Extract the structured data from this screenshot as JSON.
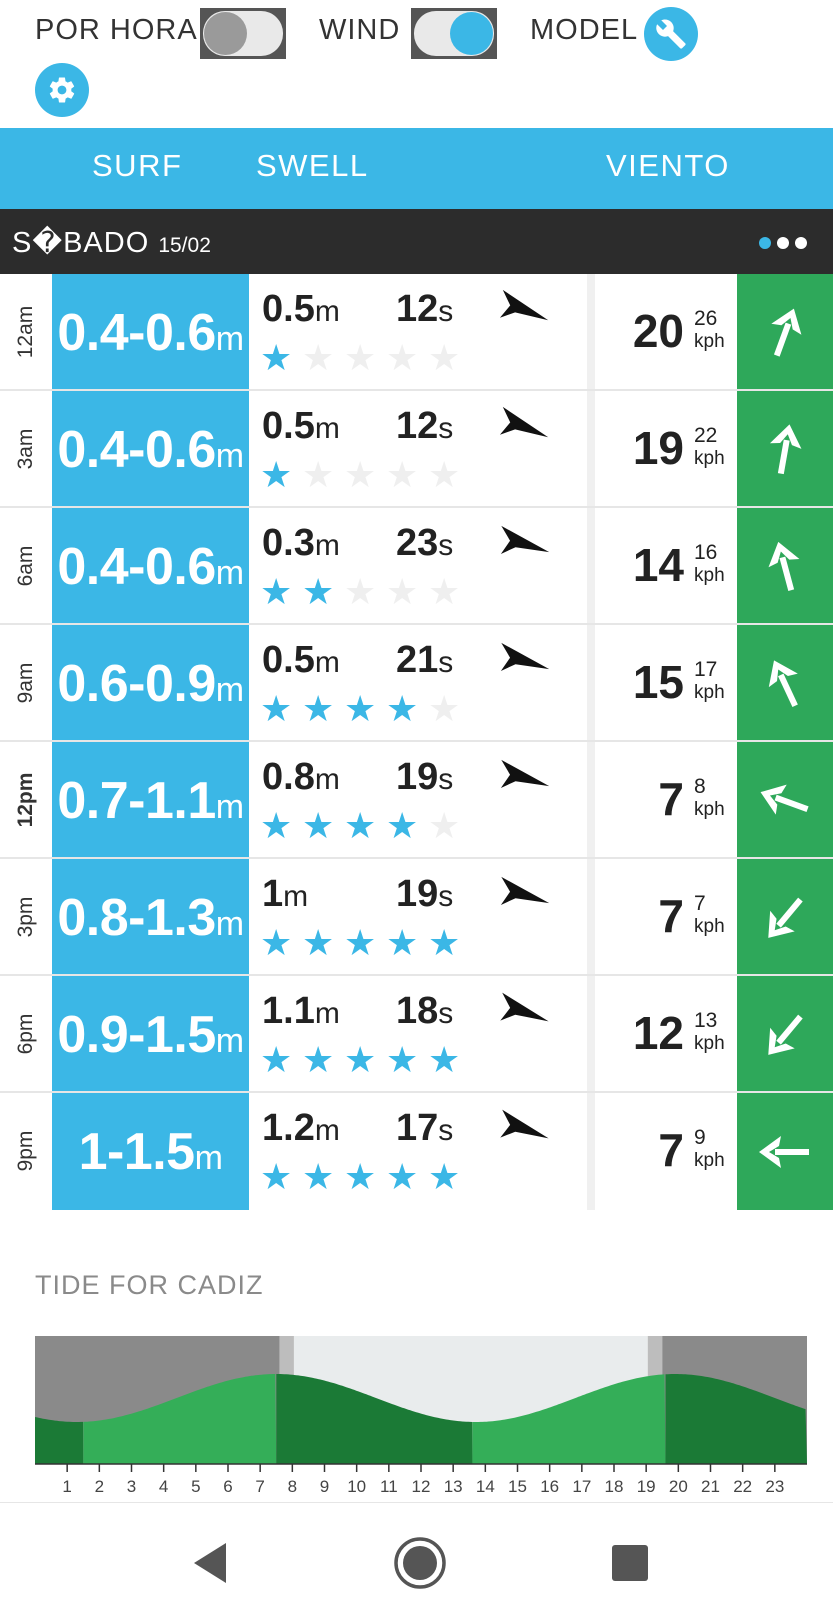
{
  "toggles": [
    {
      "label": "POR HORA",
      "state": "off"
    },
    {
      "label": "WIND",
      "state": "on"
    },
    {
      "label": "MODEL"
    }
  ],
  "tabs": [
    "SURF",
    "SWELL",
    "VIENTO"
  ],
  "day": {
    "name": "S�BADO",
    "date": "15/02"
  },
  "rows": [
    {
      "time": "12am",
      "surf": "0.4-0.6",
      "surf_unit": "m",
      "swell_h": "0.5",
      "swell_unit": "m",
      "period": "12",
      "period_unit": "s",
      "stars": 1,
      "wind": "20",
      "gust": "26",
      "wind_unit": "kph",
      "swell_dir_deg": 10,
      "wind_dir_deg": 200
    },
    {
      "time": "3am",
      "surf": "0.4-0.6",
      "surf_unit": "m",
      "swell_h": "0.5",
      "swell_unit": "m",
      "period": "12",
      "period_unit": "s",
      "stars": 1,
      "wind": "19",
      "gust": "22",
      "wind_unit": "kph",
      "swell_dir_deg": 10,
      "wind_dir_deg": 190
    },
    {
      "time": "6am",
      "surf": "0.4-0.6",
      "surf_unit": "m",
      "swell_h": "0.3",
      "swell_unit": "m",
      "period": "23",
      "period_unit": "s",
      "stars": 2,
      "wind": "14",
      "gust": "16",
      "wind_unit": "kph",
      "swell_dir_deg": 5,
      "wind_dir_deg": 165
    },
    {
      "time": "9am",
      "surf": "0.6-0.9",
      "surf_unit": "m",
      "swell_h": "0.5",
      "swell_unit": "m",
      "period": "21",
      "period_unit": "s",
      "stars": 4,
      "wind": "15",
      "gust": "17",
      "wind_unit": "kph",
      "swell_dir_deg": 5,
      "wind_dir_deg": 155
    },
    {
      "time": "12pm",
      "surf": "0.7-1.1",
      "surf_unit": "m",
      "swell_h": "0.8",
      "swell_unit": "m",
      "period": "19",
      "period_unit": "s",
      "stars": 4,
      "wind": "7",
      "gust": "8",
      "wind_unit": "kph",
      "swell_dir_deg": 5,
      "wind_dir_deg": 110,
      "now": true
    },
    {
      "time": "3pm",
      "surf": "0.8-1.3",
      "surf_unit": "m",
      "swell_h": "1",
      "swell_unit": "m",
      "period": "19",
      "period_unit": "s",
      "stars": 5,
      "wind": "7",
      "gust": "7",
      "wind_unit": "kph",
      "swell_dir_deg": 5,
      "wind_dir_deg": 40
    },
    {
      "time": "6pm",
      "surf": "0.9-1.5",
      "surf_unit": "m",
      "swell_h": "1.1",
      "swell_unit": "m",
      "period": "18",
      "period_unit": "s",
      "stars": 5,
      "wind": "12",
      "gust": "13",
      "wind_unit": "kph",
      "swell_dir_deg": 8,
      "wind_dir_deg": 40
    },
    {
      "time": "9pm",
      "surf": "1-1.5",
      "surf_unit": "m",
      "swell_h": "1.2",
      "swell_unit": "m",
      "period": "17",
      "period_unit": "s",
      "stars": 5,
      "wind": "7",
      "gust": "9",
      "wind_unit": "kph",
      "swell_dir_deg": 8,
      "wind_dir_deg": 90
    }
  ],
  "tide": {
    "title": "TIDE FOR CADIZ",
    "hours": [
      "1",
      "2",
      "3",
      "4",
      "5",
      "6",
      "7",
      "8",
      "9",
      "10",
      "11",
      "12",
      "13",
      "14",
      "15",
      "16",
      "17",
      "18",
      "19",
      "20",
      "21",
      "22",
      "23"
    ],
    "colors": {
      "night": "#8a8a8a",
      "day": "#e9eced",
      "twilight": "#bdbdbd",
      "light_green": "#34ae58",
      "dark_green": "#1b7a36"
    }
  },
  "colors": {
    "accent": "#3bb7e6",
    "dir_bg": "#2ea85a",
    "dark": "#2c2c2c"
  }
}
